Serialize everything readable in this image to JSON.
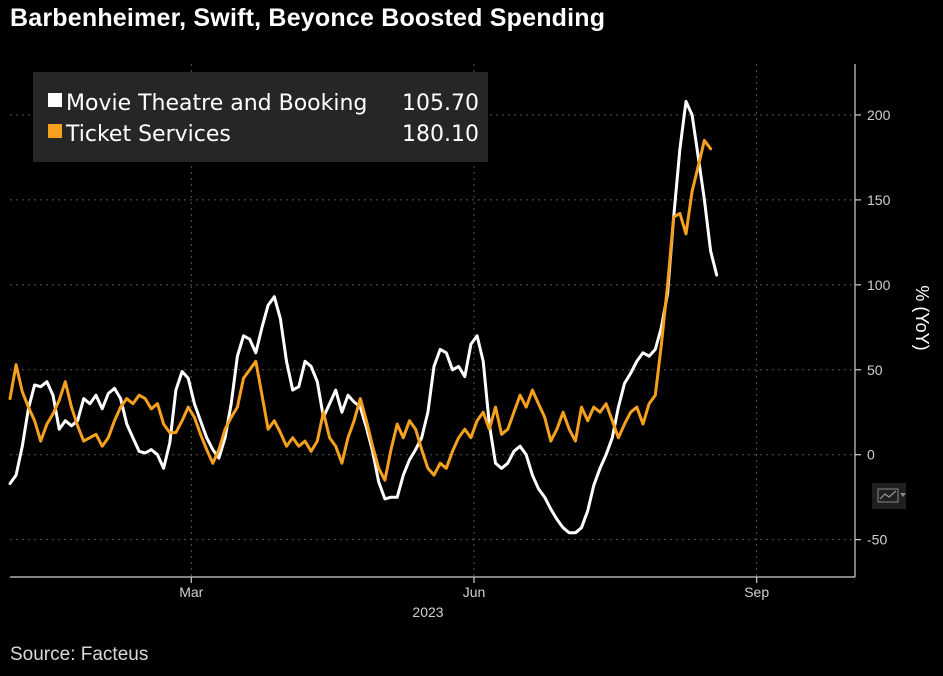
{
  "title": "Barbenheimer, Swift, Beyonce Boosted Spending",
  "source": "Source: Facteus",
  "colors": {
    "background": "#000000",
    "movie": "#ffffff",
    "ticket": "#f5a01e",
    "grid": "#555555"
  },
  "icons": {
    "chart_toggle": "line-chart-icon"
  },
  "chart_data": {
    "type": "line",
    "title": "Barbenheimer, Swift, Beyonce Boosted Spending",
    "ylabel": "% (YoY)",
    "xlabel": "2023",
    "ylim": [
      -72,
      230
    ],
    "yticks": [
      -50,
      0,
      50,
      100,
      150,
      200
    ],
    "xlim": [
      "2023-01-01",
      "2023-10-03"
    ],
    "x_tick_labels": [
      {
        "date": "2023-03-01",
        "label": "Mar"
      },
      {
        "date": "2023-06-01",
        "label": "Jun"
      },
      {
        "date": "2023-09-01",
        "label": "Sep"
      }
    ],
    "year_label": "2023",
    "grid": true,
    "legend_position": "top-left",
    "series": [
      {
        "name": "Movie Theatre and Booking",
        "last_value": "105.70",
        "color": "#ffffff",
        "points": [
          [
            "2023-01-01",
            -17
          ],
          [
            "2023-01-03",
            -12
          ],
          [
            "2023-01-05",
            5
          ],
          [
            "2023-01-07",
            27
          ],
          [
            "2023-01-09",
            41
          ],
          [
            "2023-01-11",
            40
          ],
          [
            "2023-01-13",
            43
          ],
          [
            "2023-01-15",
            35
          ],
          [
            "2023-01-17",
            15
          ],
          [
            "2023-01-19",
            20
          ],
          [
            "2023-01-21",
            17
          ],
          [
            "2023-01-23",
            20
          ],
          [
            "2023-01-25",
            33
          ],
          [
            "2023-01-27",
            30
          ],
          [
            "2023-01-29",
            35
          ],
          [
            "2023-01-31",
            27
          ],
          [
            "2023-02-02",
            36
          ],
          [
            "2023-02-04",
            39
          ],
          [
            "2023-02-06",
            33
          ],
          [
            "2023-02-08",
            18
          ],
          [
            "2023-02-10",
            10
          ],
          [
            "2023-02-12",
            2
          ],
          [
            "2023-02-14",
            1
          ],
          [
            "2023-02-16",
            3
          ],
          [
            "2023-02-18",
            0
          ],
          [
            "2023-02-20",
            -8
          ],
          [
            "2023-02-22",
            7
          ],
          [
            "2023-02-24",
            38
          ],
          [
            "2023-02-26",
            49
          ],
          [
            "2023-02-28",
            45
          ],
          [
            "2023-03-02",
            30
          ],
          [
            "2023-03-04",
            20
          ],
          [
            "2023-03-06",
            10
          ],
          [
            "2023-03-08",
            3
          ],
          [
            "2023-03-10",
            -2
          ],
          [
            "2023-03-12",
            10
          ],
          [
            "2023-03-14",
            30
          ],
          [
            "2023-03-16",
            58
          ],
          [
            "2023-03-18",
            70
          ],
          [
            "2023-03-20",
            68
          ],
          [
            "2023-03-22",
            60
          ],
          [
            "2023-03-24",
            75
          ],
          [
            "2023-03-26",
            88
          ],
          [
            "2023-03-28",
            93
          ],
          [
            "2023-03-30",
            80
          ],
          [
            "2023-04-01",
            55
          ],
          [
            "2023-04-03",
            38
          ],
          [
            "2023-04-05",
            40
          ],
          [
            "2023-04-07",
            55
          ],
          [
            "2023-04-09",
            52
          ],
          [
            "2023-04-11",
            43
          ],
          [
            "2023-04-13",
            22
          ],
          [
            "2023-04-15",
            30
          ],
          [
            "2023-04-17",
            38
          ],
          [
            "2023-04-19",
            25
          ],
          [
            "2023-04-21",
            35
          ],
          [
            "2023-04-23",
            31
          ],
          [
            "2023-04-25",
            28
          ],
          [
            "2023-04-27",
            16
          ],
          [
            "2023-04-29",
            2
          ],
          [
            "2023-05-01",
            -16
          ],
          [
            "2023-05-03",
            -26
          ],
          [
            "2023-05-05",
            -25
          ],
          [
            "2023-05-07",
            -25
          ],
          [
            "2023-05-09",
            -12
          ],
          [
            "2023-05-11",
            -3
          ],
          [
            "2023-05-13",
            3
          ],
          [
            "2023-05-15",
            10
          ],
          [
            "2023-05-17",
            25
          ],
          [
            "2023-05-19",
            52
          ],
          [
            "2023-05-21",
            62
          ],
          [
            "2023-05-23",
            60
          ],
          [
            "2023-05-25",
            50
          ],
          [
            "2023-05-27",
            52
          ],
          [
            "2023-05-29",
            46
          ],
          [
            "2023-05-31",
            65
          ],
          [
            "2023-06-02",
            70
          ],
          [
            "2023-06-04",
            55
          ],
          [
            "2023-06-06",
            18
          ],
          [
            "2023-06-08",
            -5
          ],
          [
            "2023-06-10",
            -8
          ],
          [
            "2023-06-12",
            -5
          ],
          [
            "2023-06-14",
            2
          ],
          [
            "2023-06-16",
            5
          ],
          [
            "2023-06-18",
            0
          ],
          [
            "2023-06-20",
            -12
          ],
          [
            "2023-06-22",
            -20
          ],
          [
            "2023-06-24",
            -25
          ],
          [
            "2023-06-26",
            -32
          ],
          [
            "2023-06-28",
            -38
          ],
          [
            "2023-06-30",
            -43
          ],
          [
            "2023-07-02",
            -46
          ],
          [
            "2023-07-04",
            -46
          ],
          [
            "2023-07-06",
            -43
          ],
          [
            "2023-07-08",
            -33
          ],
          [
            "2023-07-10",
            -18
          ],
          [
            "2023-07-12",
            -8
          ],
          [
            "2023-07-14",
            0
          ],
          [
            "2023-07-16",
            10
          ],
          [
            "2023-07-18",
            28
          ],
          [
            "2023-07-20",
            42
          ],
          [
            "2023-07-22",
            48
          ],
          [
            "2023-07-24",
            55
          ],
          [
            "2023-07-26",
            60
          ],
          [
            "2023-07-28",
            58
          ],
          [
            "2023-07-30",
            62
          ],
          [
            "2023-08-01",
            75
          ],
          [
            "2023-08-03",
            95
          ],
          [
            "2023-08-05",
            140
          ],
          [
            "2023-08-07",
            180
          ],
          [
            "2023-08-09",
            208
          ],
          [
            "2023-08-11",
            200
          ],
          [
            "2023-08-13",
            175
          ],
          [
            "2023-08-15",
            150
          ],
          [
            "2023-08-17",
            120
          ],
          [
            "2023-08-19",
            105.7
          ]
        ]
      },
      {
        "name": "Ticket Services",
        "last_value": "180.10",
        "color": "#f5a01e",
        "points": [
          [
            "2023-01-01",
            33
          ],
          [
            "2023-01-03",
            53
          ],
          [
            "2023-01-05",
            37
          ],
          [
            "2023-01-07",
            28
          ],
          [
            "2023-01-09",
            20
          ],
          [
            "2023-01-11",
            8
          ],
          [
            "2023-01-13",
            18
          ],
          [
            "2023-01-15",
            24
          ],
          [
            "2023-01-17",
            32
          ],
          [
            "2023-01-19",
            43
          ],
          [
            "2023-01-21",
            28
          ],
          [
            "2023-01-23",
            17
          ],
          [
            "2023-01-25",
            8
          ],
          [
            "2023-01-27",
            10
          ],
          [
            "2023-01-29",
            12
          ],
          [
            "2023-01-31",
            5
          ],
          [
            "2023-02-02",
            10
          ],
          [
            "2023-02-04",
            20
          ],
          [
            "2023-02-06",
            28
          ],
          [
            "2023-02-08",
            33
          ],
          [
            "2023-02-10",
            30
          ],
          [
            "2023-02-12",
            35
          ],
          [
            "2023-02-14",
            33
          ],
          [
            "2023-02-16",
            27
          ],
          [
            "2023-02-18",
            30
          ],
          [
            "2023-02-20",
            18
          ],
          [
            "2023-02-22",
            13
          ],
          [
            "2023-02-24",
            13
          ],
          [
            "2023-02-26",
            20
          ],
          [
            "2023-02-28",
            28
          ],
          [
            "2023-03-02",
            22
          ],
          [
            "2023-03-04",
            12
          ],
          [
            "2023-03-06",
            3
          ],
          [
            "2023-03-08",
            -5
          ],
          [
            "2023-03-10",
            3
          ],
          [
            "2023-03-12",
            15
          ],
          [
            "2023-03-14",
            22
          ],
          [
            "2023-03-16",
            28
          ],
          [
            "2023-03-18",
            45
          ],
          [
            "2023-03-20",
            50
          ],
          [
            "2023-03-22",
            55
          ],
          [
            "2023-03-24",
            35
          ],
          [
            "2023-03-26",
            15
          ],
          [
            "2023-03-28",
            20
          ],
          [
            "2023-03-30",
            13
          ],
          [
            "2023-04-01",
            5
          ],
          [
            "2023-04-03",
            10
          ],
          [
            "2023-04-05",
            5
          ],
          [
            "2023-04-07",
            8
          ],
          [
            "2023-04-09",
            2
          ],
          [
            "2023-04-11",
            8
          ],
          [
            "2023-04-13",
            25
          ],
          [
            "2023-04-15",
            10
          ],
          [
            "2023-04-17",
            5
          ],
          [
            "2023-04-19",
            -5
          ],
          [
            "2023-04-21",
            10
          ],
          [
            "2023-04-23",
            20
          ],
          [
            "2023-04-25",
            33
          ],
          [
            "2023-04-27",
            20
          ],
          [
            "2023-04-29",
            5
          ],
          [
            "2023-05-01",
            -8
          ],
          [
            "2023-05-03",
            -15
          ],
          [
            "2023-05-05",
            3
          ],
          [
            "2023-05-07",
            18
          ],
          [
            "2023-05-09",
            10
          ],
          [
            "2023-05-11",
            20
          ],
          [
            "2023-05-13",
            15
          ],
          [
            "2023-05-15",
            3
          ],
          [
            "2023-05-17",
            -8
          ],
          [
            "2023-05-19",
            -12
          ],
          [
            "2023-05-21",
            -5
          ],
          [
            "2023-05-23",
            -8
          ],
          [
            "2023-05-25",
            2
          ],
          [
            "2023-05-27",
            10
          ],
          [
            "2023-05-29",
            15
          ],
          [
            "2023-05-31",
            10
          ],
          [
            "2023-06-02",
            20
          ],
          [
            "2023-06-04",
            25
          ],
          [
            "2023-06-06",
            15
          ],
          [
            "2023-06-08",
            28
          ],
          [
            "2023-06-10",
            12
          ],
          [
            "2023-06-12",
            15
          ],
          [
            "2023-06-14",
            25
          ],
          [
            "2023-06-16",
            35
          ],
          [
            "2023-06-18",
            28
          ],
          [
            "2023-06-20",
            38
          ],
          [
            "2023-06-22",
            30
          ],
          [
            "2023-06-24",
            22
          ],
          [
            "2023-06-26",
            8
          ],
          [
            "2023-06-28",
            15
          ],
          [
            "2023-06-30",
            25
          ],
          [
            "2023-07-02",
            15
          ],
          [
            "2023-07-04",
            8
          ],
          [
            "2023-07-06",
            28
          ],
          [
            "2023-07-08",
            20
          ],
          [
            "2023-07-10",
            28
          ],
          [
            "2023-07-12",
            25
          ],
          [
            "2023-07-14",
            30
          ],
          [
            "2023-07-16",
            20
          ],
          [
            "2023-07-18",
            10
          ],
          [
            "2023-07-20",
            18
          ],
          [
            "2023-07-22",
            25
          ],
          [
            "2023-07-24",
            28
          ],
          [
            "2023-07-26",
            18
          ],
          [
            "2023-07-28",
            30
          ],
          [
            "2023-07-30",
            35
          ],
          [
            "2023-08-01",
            65
          ],
          [
            "2023-08-03",
            100
          ],
          [
            "2023-08-05",
            140
          ],
          [
            "2023-08-07",
            142
          ],
          [
            "2023-08-09",
            130
          ],
          [
            "2023-08-11",
            155
          ],
          [
            "2023-08-13",
            170
          ],
          [
            "2023-08-15",
            185
          ],
          [
            "2023-08-17",
            180.1
          ]
        ]
      }
    ]
  }
}
